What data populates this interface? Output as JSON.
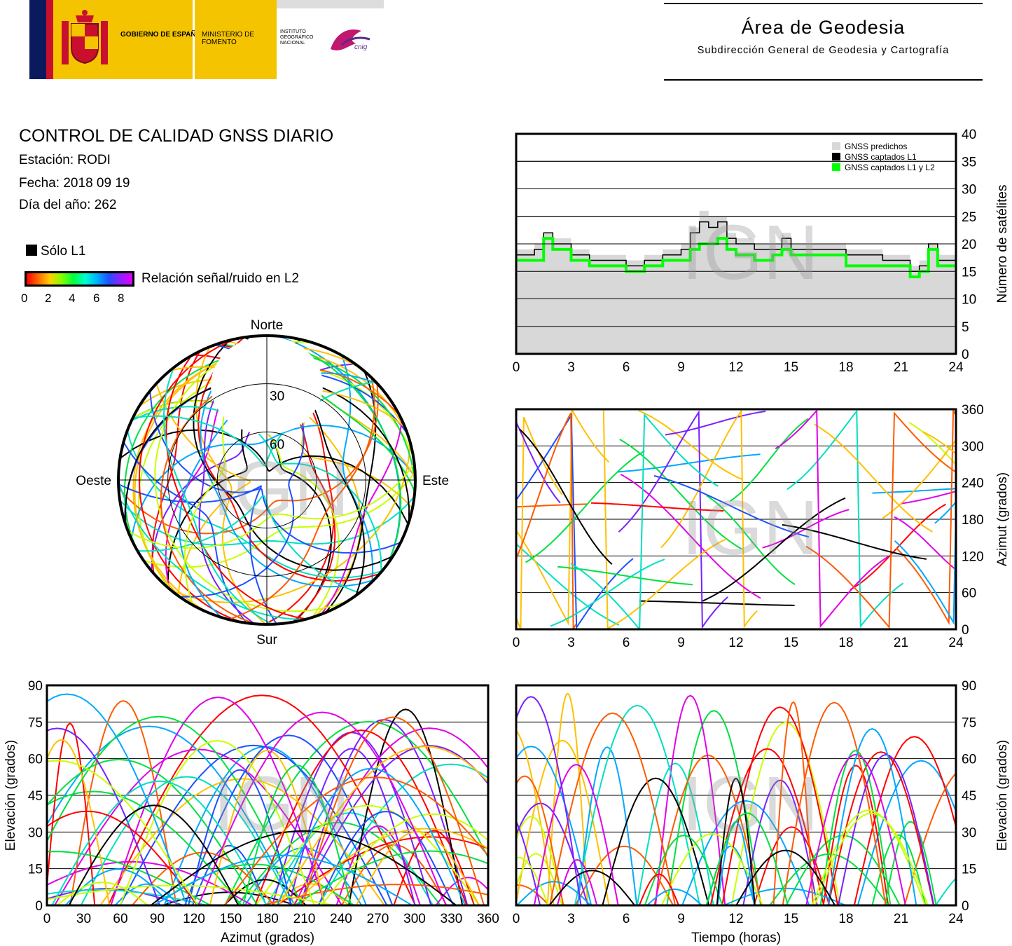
{
  "header": {
    "logo_gov": "GOBIERNO DE ESPAÑA",
    "logo_ministry": "MINISTERIO DE FOMENTO",
    "logo_institute": "INSTITUTO GEOGRÁFICO NACIONAL",
    "logo_cnig": "cnig",
    "area_title": "Área de Geodesia",
    "area_subtitle": "Subdirección General de Geodesia y Cartografía"
  },
  "report": {
    "title": "CONTROL DE CALIDAD GNSS DIARIO",
    "station": "Estación: RODI",
    "date": "Fecha: 2018 09 19",
    "doy": "Día del año: 262"
  },
  "legend": {
    "solo_l1": "Sólo L1",
    "snr_label": "Relación señal/ruido en L2",
    "snr_ticks": [
      "0",
      "2",
      "4",
      "6",
      "8"
    ],
    "colors": {
      "solo_l1": "#000000",
      "predicted": "#d8d8d8",
      "l1_l2": "#00ff00"
    }
  },
  "watermark": "IGN",
  "chart_data": [
    {
      "type": "polar",
      "name": "skyplot",
      "labels": {
        "north": "Norte",
        "south": "Sur",
        "east": "Este",
        "west": "Oeste"
      },
      "ring_labels": [
        "30",
        "60"
      ],
      "rings": [
        30,
        60
      ],
      "color_scale": "snr_l2"
    },
    {
      "type": "area",
      "name": "satellite_count",
      "ylabel": "Número de satélites",
      "xlim": [
        0,
        24
      ],
      "ylim": [
        0,
        40
      ],
      "xticks": [
        "0",
        "3",
        "6",
        "9",
        "12",
        "15",
        "18",
        "21",
        "24"
      ],
      "yticks": [
        "0",
        "5",
        "10",
        "15",
        "20",
        "25",
        "30",
        "35",
        "40"
      ],
      "legend_placement": "top-right",
      "grid": true,
      "series": [
        {
          "name": "GNSS predichos",
          "x": [
            0,
            1,
            1.5,
            2,
            3,
            4,
            5,
            6,
            7,
            8,
            9,
            9.5,
            10,
            10.5,
            11,
            11.5,
            12,
            13,
            14,
            14.5,
            15,
            16,
            17,
            18,
            19,
            20,
            21,
            21.5,
            22,
            22.5,
            23,
            24
          ],
          "values": [
            19,
            20,
            22,
            21,
            19,
            18,
            18,
            17,
            18,
            19,
            20,
            23,
            26,
            25,
            25,
            22,
            21,
            20,
            20,
            22,
            20,
            20,
            20,
            19,
            19,
            18,
            18,
            16,
            17,
            20,
            18,
            19
          ]
        },
        {
          "name": "GNSS captados L1",
          "x": [
            0,
            1,
            1.5,
            2,
            3,
            4,
            5,
            6,
            7,
            8,
            9,
            9.5,
            10,
            10.5,
            11,
            11.5,
            12,
            13,
            14,
            14.5,
            15,
            16,
            17,
            18,
            19,
            20,
            21,
            21.5,
            22,
            22.5,
            23,
            24
          ],
          "values": [
            18,
            19,
            22,
            20,
            18,
            17,
            17,
            16,
            17,
            18,
            19,
            22,
            24,
            23,
            24,
            21,
            20,
            19,
            19,
            21,
            19,
            19,
            19,
            18,
            18,
            17,
            17,
            15,
            16,
            20,
            17,
            18
          ]
        },
        {
          "name": "GNSS captados L1 y L2",
          "x": [
            0,
            1,
            1.5,
            2,
            3,
            4,
            5,
            6,
            7,
            8,
            9,
            9.5,
            10,
            10.5,
            11,
            11.5,
            12,
            13,
            14,
            14.5,
            15,
            16,
            17,
            18,
            19,
            20,
            21,
            21.5,
            22,
            22.5,
            23,
            24
          ],
          "values": [
            17,
            17,
            21,
            19,
            17,
            16,
            16,
            15,
            16,
            17,
            17,
            19,
            20,
            20,
            21,
            19,
            18,
            17,
            18,
            19,
            18,
            18,
            18,
            16,
            16,
            16,
            16,
            14,
            15,
            19,
            16,
            16
          ]
        }
      ]
    },
    {
      "type": "scatter",
      "name": "azimuth_vs_time",
      "ylabel": "Azimut (grados)",
      "xlim": [
        0,
        24
      ],
      "ylim": [
        0,
        360
      ],
      "xticks": [
        "0",
        "3",
        "6",
        "9",
        "12",
        "15",
        "18",
        "21",
        "24"
      ],
      "yticks": [
        "0",
        "60",
        "120",
        "180",
        "240",
        "300",
        "360"
      ],
      "grid": true
    },
    {
      "type": "scatter",
      "name": "elevation_vs_azimuth",
      "xlabel": "Azimut (grados)",
      "ylabel": "Elevación (grados)",
      "xlim": [
        0,
        360
      ],
      "ylim": [
        0,
        90
      ],
      "xticks": [
        "0",
        "30",
        "60",
        "90",
        "120",
        "150",
        "180",
        "210",
        "240",
        "270",
        "300",
        "330",
        "360"
      ],
      "yticks": [
        "0",
        "15",
        "30",
        "45",
        "60",
        "75",
        "90"
      ],
      "grid": true
    },
    {
      "type": "line",
      "name": "elevation_vs_time",
      "xlabel": "Tiempo (horas)",
      "ylabel": "Elevación (grados)",
      "xlim": [
        0,
        24
      ],
      "ylim": [
        0,
        90
      ],
      "xticks": [
        "0",
        "3",
        "6",
        "9",
        "12",
        "15",
        "18",
        "21",
        "24"
      ],
      "yticks": [
        "0",
        "15",
        "30",
        "45",
        "60",
        "75",
        "90"
      ],
      "grid": true
    }
  ]
}
